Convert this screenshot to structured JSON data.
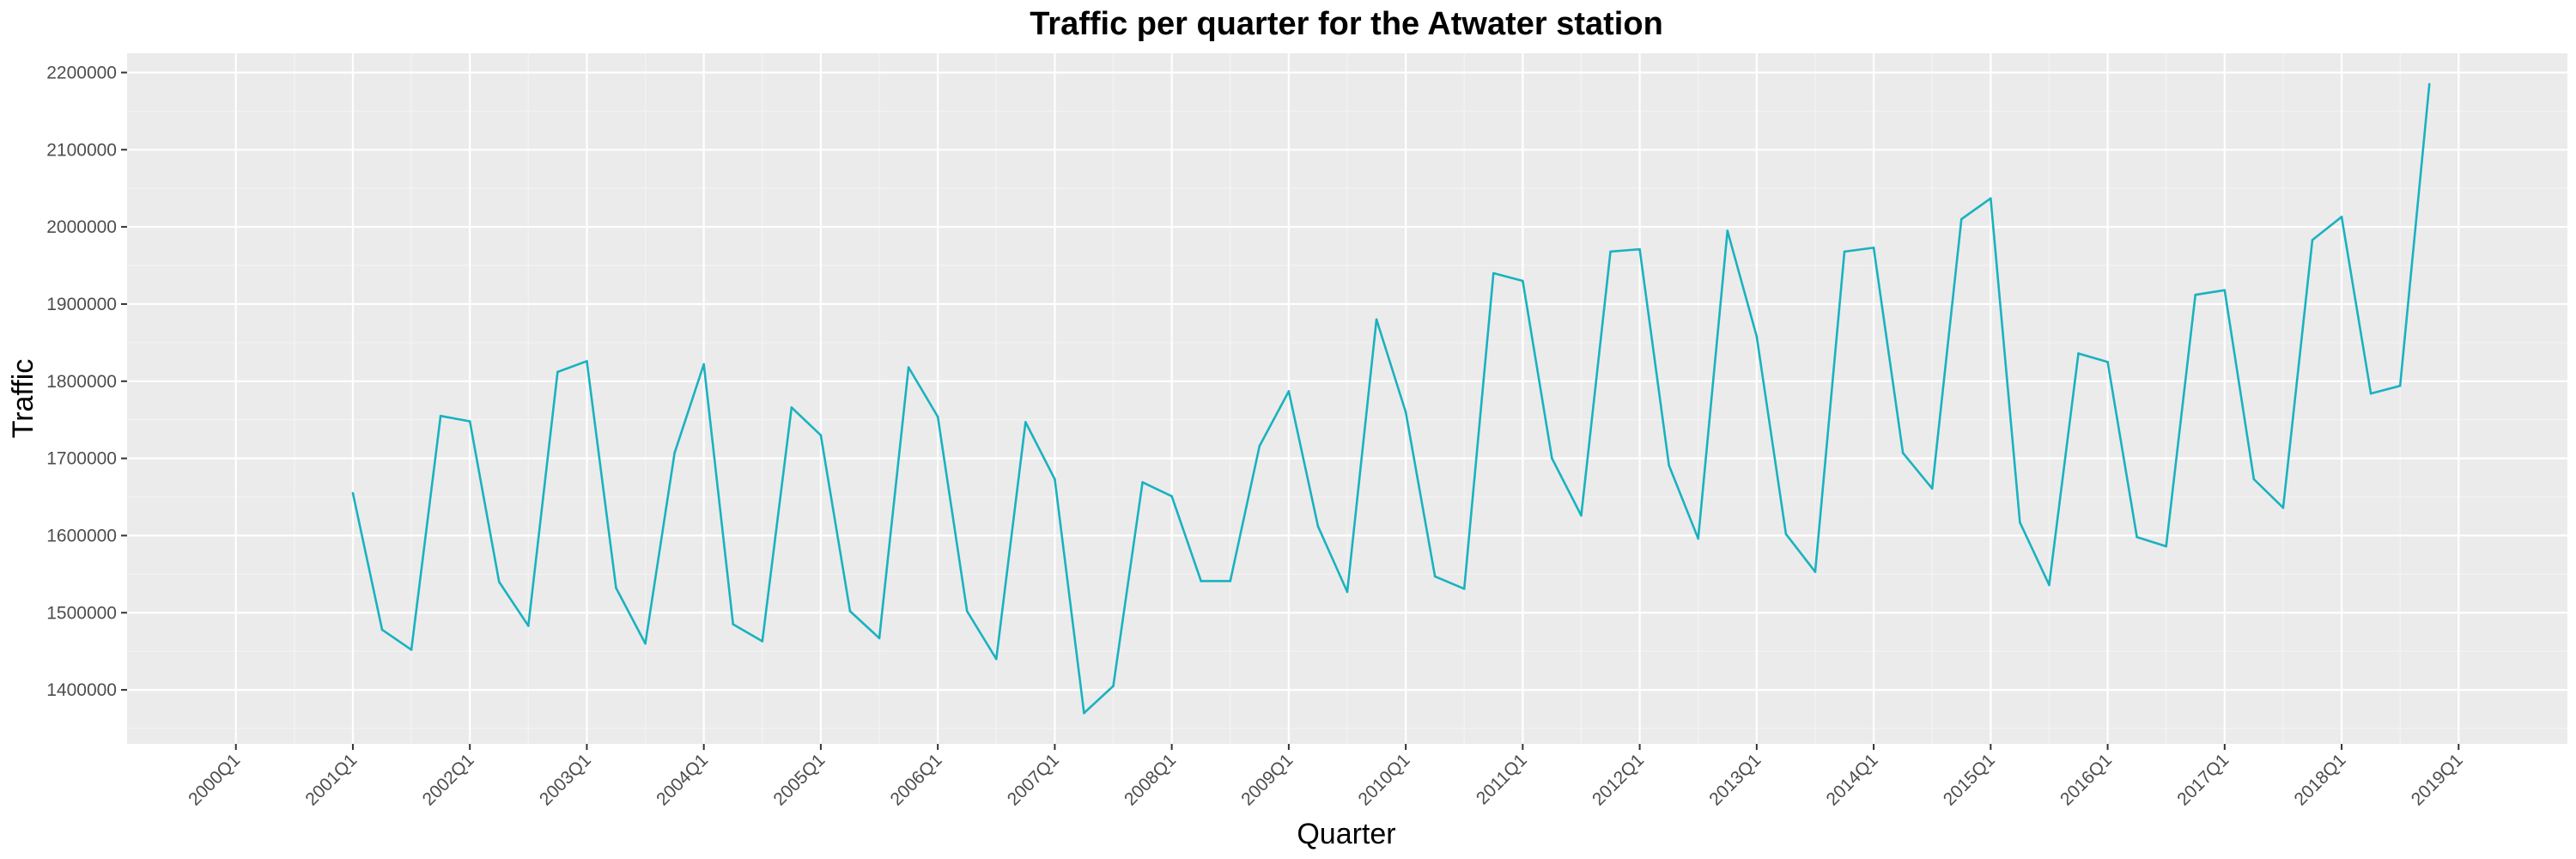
{
  "chart_data": {
    "type": "line",
    "title": "Traffic per quarter for the Atwater station",
    "xlabel": "Quarter",
    "ylabel": "Traffic",
    "x_tick_labels": [
      "2000Q1",
      "2001Q1",
      "2002Q1",
      "2003Q1",
      "2004Q1",
      "2005Q1",
      "2006Q1",
      "2007Q1",
      "2008Q1",
      "2009Q1",
      "2010Q1",
      "2011Q1",
      "2012Q1",
      "2013Q1",
      "2014Q1",
      "2015Q1",
      "2016Q1",
      "2017Q1",
      "2018Q1",
      "2019Q1"
    ],
    "y_ticks": [
      1400000,
      1500000,
      1600000,
      1700000,
      1800000,
      1900000,
      2000000,
      2100000,
      2200000
    ],
    "y_tick_labels": [
      "1400000",
      "1500000",
      "1600000",
      "1700000",
      "1800000",
      "1900000",
      "2000000",
      "2100000",
      "2200000"
    ],
    "xlim": [
      "2000Q1",
      "2019Q1"
    ],
    "ylim": [
      1330000,
      2225000
    ],
    "grid": true,
    "colors": {
      "line": "#19B2C0",
      "panel": "#EBEBEB",
      "grid": "#FFFFFF"
    },
    "x": [
      "2001Q1",
      "2001Q2",
      "2001Q3",
      "2001Q4",
      "2002Q1",
      "2002Q2",
      "2002Q3",
      "2002Q4",
      "2003Q1",
      "2003Q2",
      "2003Q3",
      "2003Q4",
      "2004Q1",
      "2004Q2",
      "2004Q3",
      "2004Q4",
      "2005Q1",
      "2005Q2",
      "2005Q3",
      "2005Q4",
      "2006Q1",
      "2006Q2",
      "2006Q3",
      "2006Q4",
      "2007Q1",
      "2007Q2",
      "2007Q3",
      "2007Q4",
      "2008Q1",
      "2008Q2",
      "2008Q3",
      "2008Q4",
      "2009Q1",
      "2009Q2",
      "2009Q3",
      "2009Q4",
      "2010Q1",
      "2010Q2",
      "2010Q3",
      "2010Q4",
      "2011Q1",
      "2011Q2",
      "2011Q3",
      "2011Q4",
      "2012Q1",
      "2012Q2",
      "2012Q3",
      "2012Q4",
      "2013Q1",
      "2013Q2",
      "2013Q3",
      "2013Q4",
      "2014Q1",
      "2014Q2",
      "2014Q3",
      "2014Q4",
      "2015Q1",
      "2015Q2",
      "2015Q3",
      "2015Q4",
      "2016Q1",
      "2016Q2",
      "2016Q3",
      "2016Q4",
      "2017Q1",
      "2017Q2",
      "2017Q3",
      "2017Q4",
      "2018Q1",
      "2018Q2",
      "2018Q3",
      "2018Q4"
    ],
    "series": [
      {
        "values": [
          1655000,
          1478000,
          1452000,
          1755000,
          1748000,
          1540000,
          1483000,
          1812000,
          1826000,
          1532000,
          1460000,
          1707000,
          1822000,
          1485000,
          1463000,
          1766000,
          1730000,
          1502000,
          1467000,
          1818000,
          1754000,
          1502000,
          1440000,
          1747000,
          1673000,
          1370000,
          1405000,
          1669000,
          1651000,
          1541000,
          1541000,
          1716000,
          1787000,
          1612000,
          1527000,
          1880000,
          1760000,
          1547000,
          1531000,
          1940000,
          1930000,
          1700000,
          1626000,
          1968000,
          1971000,
          1691000,
          1596000,
          1995000,
          1858000,
          1602000,
          1553000,
          1968000,
          1973000,
          1707000,
          1661000,
          2010000,
          2037000,
          1617000,
          1536000,
          1836000,
          1825000,
          1598000,
          1586000,
          1912000,
          1918000,
          1673000,
          1636000,
          1983000,
          2013000,
          1784000,
          1794000,
          2185000
        ]
      }
    ]
  }
}
